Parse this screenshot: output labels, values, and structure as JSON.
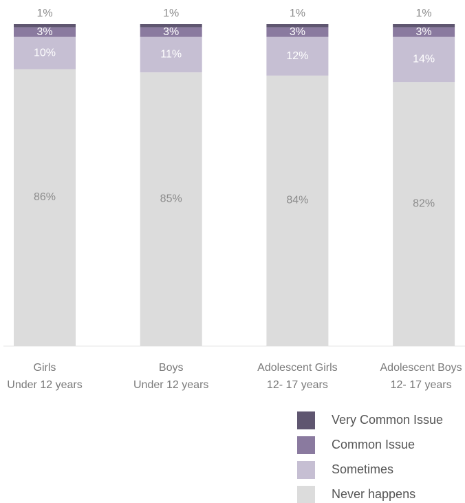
{
  "chart_data": {
    "type": "stacked_bar",
    "categories": [
      [
        "Girls",
        "Under 12 years"
      ],
      [
        "Boys",
        "Under 12 years"
      ],
      [
        "Adolescent Girls",
        "12- 17 years"
      ],
      [
        "Adolescent Boys",
        "12- 17 years"
      ]
    ],
    "series": [
      {
        "name": "Never happens",
        "color": "#dcdcdc",
        "values": [
          86,
          85,
          84,
          82
        ],
        "value_labels": [
          "86%",
          "85%",
          "84%",
          "82%"
        ]
      },
      {
        "name": "Sometimes",
        "color": "#c6bfd3",
        "values": [
          10,
          11,
          12,
          14
        ],
        "value_labels": [
          "10%",
          "11%",
          "12%",
          "14%"
        ]
      },
      {
        "name": "Common Issue",
        "color": "#8a7a9f",
        "values": [
          3,
          3,
          3,
          3
        ],
        "value_labels": [
          "3%",
          "3%",
          "3%",
          "3%"
        ]
      },
      {
        "name": "Very Common Issue",
        "color": "#5f5670",
        "values": [
          1,
          1,
          1,
          1
        ],
        "value_labels": [
          "1%",
          "1%",
          "1%",
          "1%"
        ]
      }
    ],
    "ylim": [
      0,
      100
    ]
  }
}
